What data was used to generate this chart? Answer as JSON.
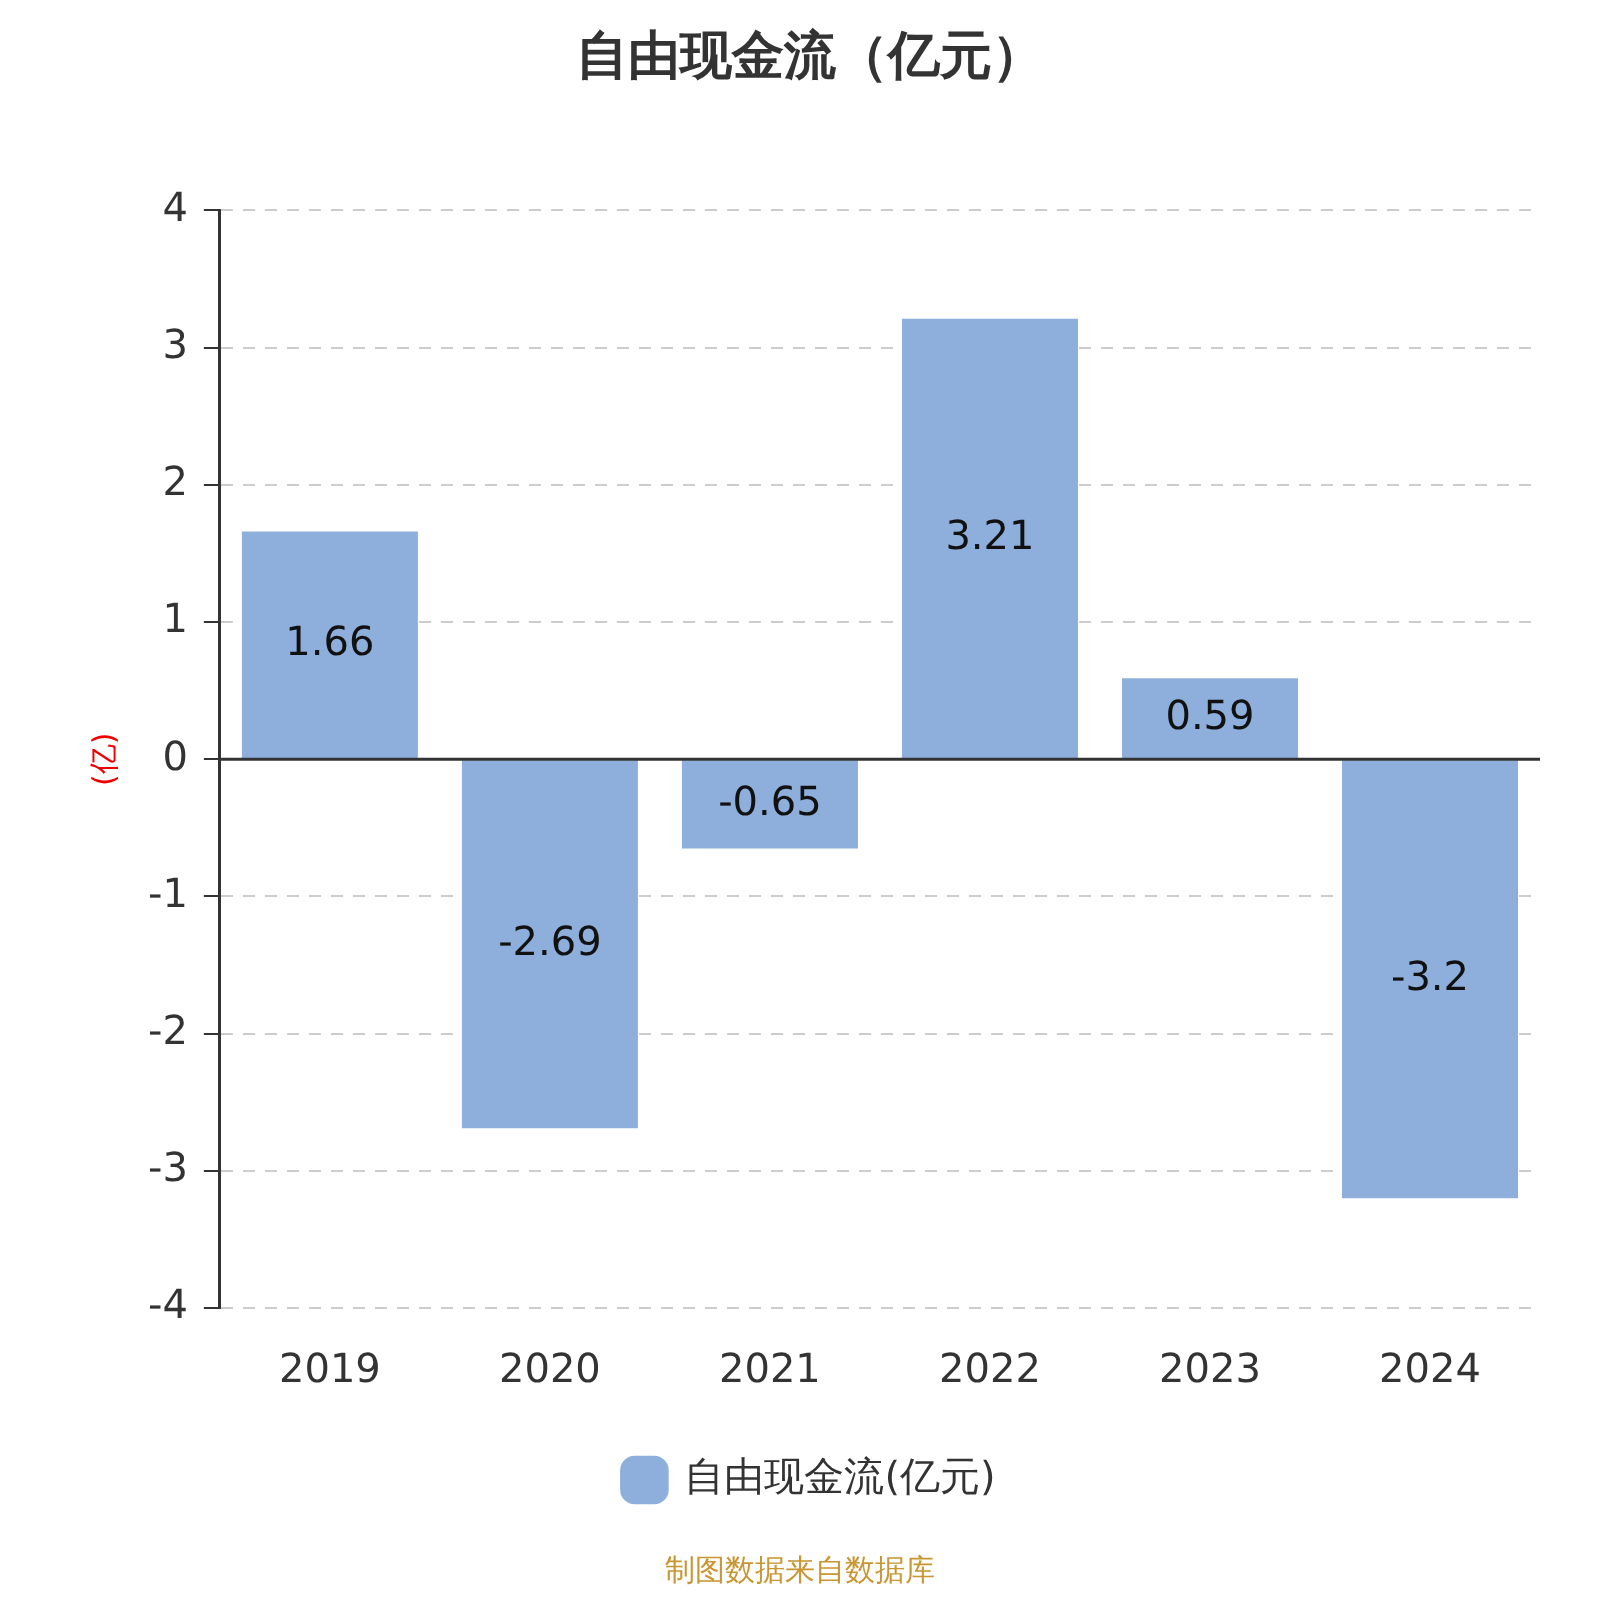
{
  "chart_data": {
    "type": "bar",
    "title": "自由现金流（亿元）",
    "ylabel": "(亿)",
    "categories": [
      "2019",
      "2020",
      "2021",
      "2022",
      "2023",
      "2024"
    ],
    "series": [
      {
        "name": "自由现金流(亿元)",
        "color": "#8eaedb",
        "values": [
          1.66,
          -2.69,
          -0.65,
          3.21,
          0.59,
          -3.2
        ]
      }
    ],
    "ylim": [
      -4,
      4
    ],
    "yticks": [
      -4,
      -3,
      -2,
      -1,
      0,
      1,
      2,
      3,
      4
    ],
    "grid": "y",
    "legend": "bottom",
    "data_labels": true,
    "annotations": [
      "制图数据来自数据库"
    ]
  }
}
